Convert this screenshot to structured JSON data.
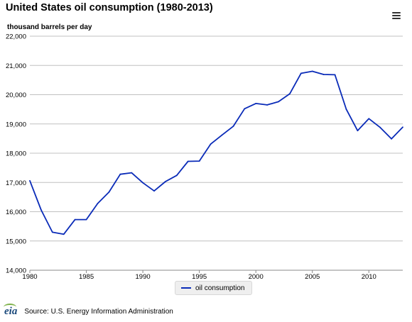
{
  "title": "United States oil consumption (1980-2013)",
  "footer": {
    "logo_text": "eia",
    "source": "Source: U.S. Energy Information Administration"
  },
  "icons": {
    "menu": "hamburger-menu-icon",
    "logo": "eia-logo"
  },
  "colors": {
    "series": "#0a2bb8",
    "grid": "#c0c0c0"
  },
  "chart_data": {
    "type": "line",
    "ylabel": "thousand barrels per day",
    "xlabel": "",
    "x": [
      1980,
      1981,
      1982,
      1983,
      1984,
      1985,
      1986,
      1987,
      1988,
      1989,
      1990,
      1991,
      1992,
      1993,
      1994,
      1995,
      1996,
      1997,
      1998,
      1999,
      2000,
      2001,
      2002,
      2003,
      2004,
      2005,
      2006,
      2007,
      2008,
      2009,
      2010,
      2011,
      2012,
      2013
    ],
    "series": [
      {
        "name": "oil consumption",
        "values": [
          17060,
          16060,
          15300,
          15230,
          15730,
          15730,
          16280,
          16670,
          17280,
          17330,
          16990,
          16710,
          17030,
          17240,
          17720,
          17730,
          18310,
          18620,
          18920,
          19520,
          19700,
          19650,
          19760,
          20030,
          20730,
          20800,
          20690,
          20680,
          19500,
          18770,
          19180,
          18880,
          18490,
          18890
        ]
      }
    ],
    "xlim": [
      1980,
      2013
    ],
    "ylim": [
      14000,
      22000
    ],
    "xticks": [
      1980,
      1985,
      1990,
      1995,
      2000,
      2005,
      2010
    ],
    "yticks": [
      14000,
      15000,
      16000,
      17000,
      18000,
      19000,
      20000,
      21000,
      22000
    ],
    "ytick_labels": [
      "14,000",
      "15,000",
      "16,000",
      "17,000",
      "18,000",
      "19,000",
      "20,000",
      "21,000",
      "22,000"
    ],
    "grid": "horizontal",
    "legend": "bottom-center"
  }
}
